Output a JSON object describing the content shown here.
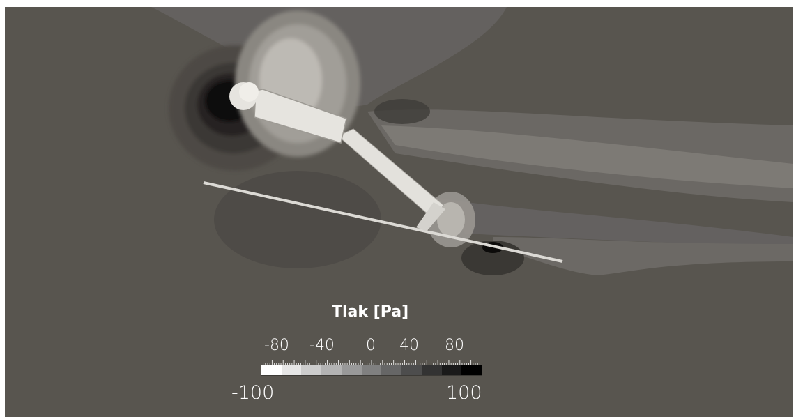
{
  "legend": {
    "title": "Tlak [Pa]",
    "tick_labels": [
      "-80",
      "-40",
      "0",
      "40",
      "80"
    ],
    "range_min": "-100",
    "range_max": "100",
    "colormap": [
      "#ffffff",
      "#e6e6e6",
      "#cccccc",
      "#b3b3b3",
      "#999999",
      "#808080",
      "#666666",
      "#4d4d4d",
      "#333333",
      "#1a1a1a",
      "#000000"
    ]
  },
  "colors": {
    "background": "#58554f",
    "geometry": "#e3e1dc"
  }
}
